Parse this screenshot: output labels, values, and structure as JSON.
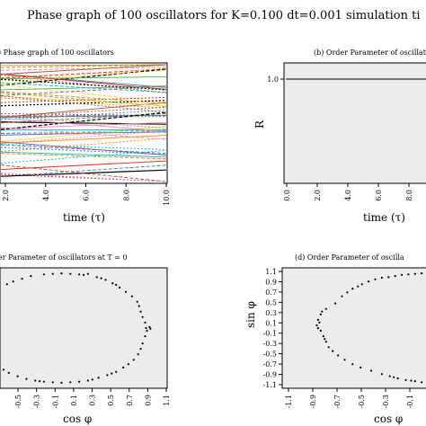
{
  "figure_title": "Phase graph of 100 oscillators for K=0.100 dt=0.001 simulation ti",
  "colors": {
    "panel_bg": "#ececec",
    "axis": "#000000",
    "line_colors": [
      "#000000",
      "#e41a1c",
      "#4daf4a",
      "#377eb8",
      "#984ea3",
      "#ff7f00",
      "#ffd92f",
      "#a65628",
      "#f781bf",
      "#00bcd4"
    ]
  },
  "chart_data": [
    {
      "id": "a",
      "type": "line",
      "title": ") Phase graph of 100 oscillators",
      "xlabel": "time (τ)",
      "xticks": [
        "2.0",
        "4.0",
        "6.0",
        "8.0",
        "10.0"
      ],
      "xlim": [
        2.0,
        10.0
      ],
      "note": "many multicolored dashed phase trajectories"
    },
    {
      "id": "b",
      "type": "line",
      "title": "(b) Order Parameter of oscillators",
      "xlabel": "time (τ)",
      "ylabel": "R",
      "xticks": [
        "0.0",
        "2.0",
        "4.0",
        "6.0",
        "8.0"
      ],
      "yticks": [
        "1.0"
      ],
      "xlim": [
        0.0,
        10.0
      ],
      "series": [
        {
          "x": [
            0,
            2,
            4,
            6,
            8,
            10
          ],
          "values": [
            1.0,
            1.0,
            1.0,
            1.0,
            1.0,
            1.0
          ]
        }
      ]
    },
    {
      "id": "c",
      "type": "scatter",
      "title": "er Parameter of oscillators at T = 0",
      "xlabel": "cos φ",
      "xticks": [
        "-0.5",
        "-0.3",
        "-0.1",
        "0.1",
        "0.3",
        "0.5",
        "0.7",
        "0.9",
        "1.1"
      ],
      "xlim": [
        -0.7,
        1.2
      ],
      "ylim": [
        -1.1,
        1.1
      ],
      "points": [
        [
          0.3,
          0.99
        ],
        [
          0.2,
          0.98
        ],
        [
          0.1,
          0.99
        ],
        [
          0.0,
          1.0
        ],
        [
          -0.1,
          0.99
        ],
        [
          -0.2,
          0.98
        ],
        [
          -0.35,
          0.95
        ],
        [
          -0.45,
          0.9
        ],
        [
          -0.55,
          0.85
        ],
        [
          -0.62,
          0.8
        ],
        [
          0.4,
          0.93
        ],
        [
          0.5,
          0.88
        ],
        [
          0.58,
          0.82
        ],
        [
          0.66,
          0.74
        ],
        [
          0.73,
          0.66
        ],
        [
          0.8,
          0.58
        ],
        [
          0.86,
          0.48
        ],
        [
          0.88,
          0.4
        ],
        [
          0.9,
          0.3
        ],
        [
          0.92,
          0.2
        ],
        [
          0.95,
          0.1
        ],
        [
          0.96,
          0.0
        ],
        [
          0.97,
          -0.05
        ],
        [
          0.95,
          -0.15
        ],
        [
          0.92,
          -0.28
        ],
        [
          0.9,
          -0.38
        ],
        [
          0.87,
          -0.48
        ],
        [
          0.82,
          -0.58
        ],
        [
          0.76,
          -0.66
        ],
        [
          0.7,
          -0.72
        ],
        [
          0.62,
          -0.8
        ],
        [
          0.52,
          -0.86
        ],
        [
          0.42,
          -0.91
        ],
        [
          0.3,
          -0.96
        ],
        [
          0.2,
          -0.98
        ],
        [
          0.1,
          -0.99
        ],
        [
          0.0,
          -1.0
        ],
        [
          -0.1,
          -0.99
        ],
        [
          -0.2,
          -0.98
        ],
        [
          -0.3,
          -0.96
        ],
        [
          -0.4,
          -0.93
        ],
        [
          -0.5,
          -0.88
        ],
        [
          -0.6,
          -0.82
        ],
        [
          -0.66,
          -0.76
        ],
        [
          0.25,
          0.97
        ],
        [
          0.45,
          0.91
        ],
        [
          0.62,
          0.79
        ],
        [
          0.35,
          -0.94
        ],
        [
          0.57,
          -0.83
        ],
        [
          -0.25,
          -0.97
        ],
        [
          1.0,
          0.02
        ],
        [
          1.01,
          -0.01
        ]
      ]
    },
    {
      "id": "d",
      "type": "scatter",
      "title": "(d) Order Parameter of oscilla",
      "xlabel": "cos φ",
      "ylabel": "sin φ",
      "xticks": [
        "-1.1",
        "-0.9",
        "-0.7",
        "-0.5",
        "-0.3",
        "-0.1"
      ],
      "yticks": [
        "1.1",
        "0.9",
        "0.7",
        "0.5",
        "0.3",
        "0.1",
        "-0.1",
        "-0.3",
        "-0.5",
        "-0.7",
        "-0.9",
        "-1.1"
      ],
      "xlim": [
        -1.15,
        0.0
      ],
      "ylim": [
        -1.1,
        1.1
      ],
      "points": [
        [
          -0.2,
          0.98
        ],
        [
          -0.25,
          0.97
        ],
        [
          -0.3,
          0.95
        ],
        [
          -0.4,
          0.92
        ],
        [
          -0.45,
          0.89
        ],
        [
          -0.55,
          0.8
        ],
        [
          -0.62,
          0.72
        ],
        [
          -0.66,
          0.65
        ],
        [
          -0.7,
          0.58
        ],
        [
          -0.75,
          0.45
        ],
        [
          -0.82,
          0.35
        ],
        [
          -0.86,
          0.25
        ],
        [
          -0.88,
          0.15
        ],
        [
          -0.87,
          0.1
        ],
        [
          -0.88,
          0.0
        ],
        [
          -0.86,
          -0.05
        ],
        [
          -0.84,
          -0.15
        ],
        [
          -0.82,
          -0.25
        ],
        [
          -0.8,
          -0.35
        ],
        [
          -0.77,
          -0.42
        ],
        [
          -0.73,
          -0.5
        ],
        [
          -0.68,
          -0.58
        ],
        [
          -0.62,
          -0.66
        ],
        [
          -0.56,
          -0.72
        ],
        [
          -0.48,
          -0.78
        ],
        [
          -0.4,
          -0.84
        ],
        [
          -0.34,
          -0.88
        ],
        [
          -0.28,
          -0.92
        ],
        [
          -0.22,
          -0.95
        ],
        [
          -0.15,
          -0.97
        ],
        [
          -0.1,
          -0.99
        ],
        [
          -0.05,
          -1.0
        ],
        [
          -0.15,
          0.99
        ],
        [
          -0.1,
          1.0
        ],
        [
          -0.35,
          0.93
        ],
        [
          -0.5,
          0.85
        ],
        [
          -0.58,
          0.76
        ],
        [
          -0.85,
          0.3
        ],
        [
          -0.89,
          0.05
        ],
        [
          -0.83,
          -0.2
        ],
        [
          -0.31,
          -0.9
        ],
        [
          -0.18,
          -0.96
        ]
      ]
    }
  ]
}
